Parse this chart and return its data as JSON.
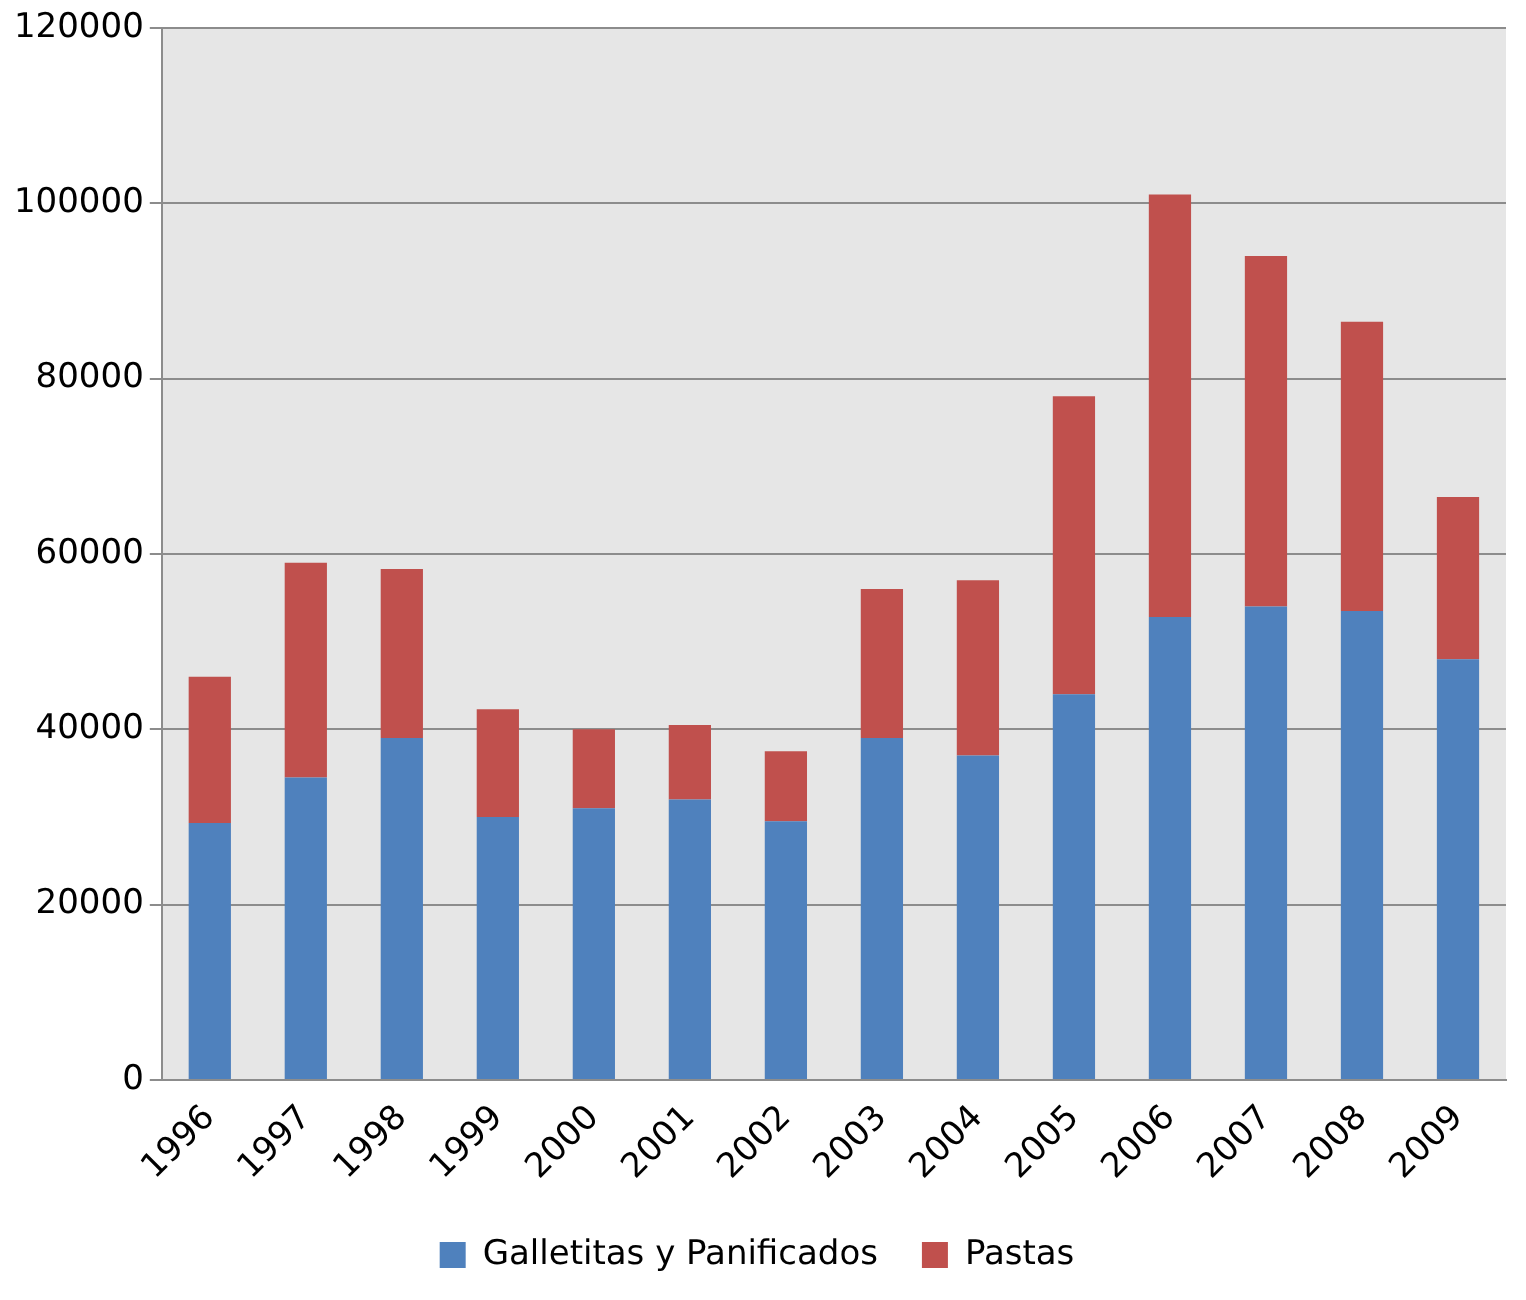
{
  "chart_data": {
    "type": "bar",
    "stacked": true,
    "categories": [
      "1996",
      "1997",
      "1998",
      "1999",
      "2000",
      "2001",
      "2002",
      "2003",
      "2004",
      "2005",
      "2006",
      "2007",
      "2008",
      "2009"
    ],
    "series": [
      {
        "name": "Galletitas y Panificados",
        "color": "#4f81bd",
        "values": [
          29300,
          34500,
          39000,
          30000,
          31000,
          32000,
          29500,
          39000,
          37000,
          44000,
          52800,
          54000,
          53500,
          48000
        ]
      },
      {
        "name": "Pastas",
        "color": "#c0504d",
        "values": [
          16700,
          24500,
          19300,
          12300,
          9000,
          8500,
          8000,
          17000,
          20000,
          34000,
          48200,
          40000,
          33000,
          18500
        ]
      }
    ],
    "ylim": [
      0,
      120000
    ],
    "yticks": [
      0,
      20000,
      40000,
      60000,
      80000,
      100000,
      120000
    ],
    "grid": "y",
    "legend": "bottom"
  }
}
